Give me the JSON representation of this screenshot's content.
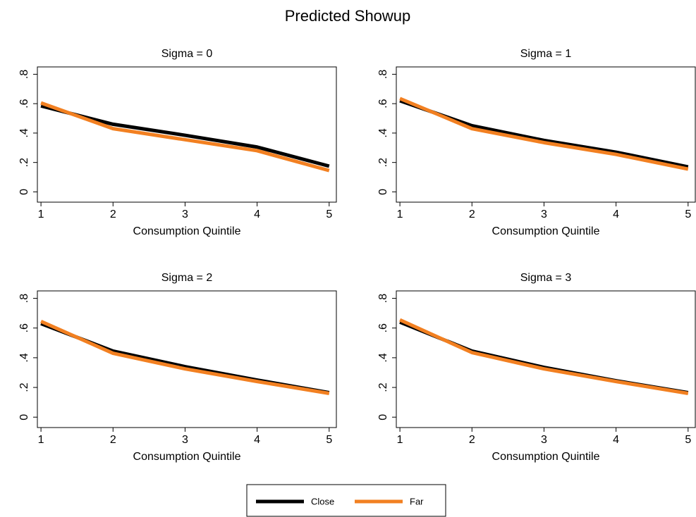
{
  "title": "Predicted Showup",
  "chart_data": [
    {
      "type": "line",
      "title": "Sigma = 0",
      "xlabel": "Consumption Quintile",
      "x": [
        1,
        2,
        3,
        4,
        5
      ],
      "series": [
        {
          "name": "Close",
          "color": "#000000",
          "values": [
            0.585,
            0.46,
            0.385,
            0.305,
            0.175
          ]
        },
        {
          "name": "Far",
          "color": "#f28021",
          "values": [
            0.605,
            0.43,
            0.355,
            0.28,
            0.145
          ]
        }
      ],
      "xlim": [
        0.95,
        5.1
      ],
      "xticks": [
        1,
        2,
        3,
        4,
        5
      ],
      "ylim": [
        -0.07,
        0.85
      ],
      "yticks": [
        0,
        {
          "value": 0.2,
          "label": ".2"
        },
        {
          "value": 0.4,
          "label": ".4"
        },
        {
          "value": 0.6,
          "label": ".6"
        },
        {
          "value": 0.8,
          "label": ".8"
        }
      ],
      "grid": false
    },
    {
      "type": "line",
      "title": "Sigma = 1",
      "xlabel": "Consumption Quintile",
      "x": [
        1,
        2,
        3,
        4,
        5
      ],
      "series": [
        {
          "name": "Close",
          "color": "#000000",
          "values": [
            0.62,
            0.45,
            0.35,
            0.27,
            0.17
          ]
        },
        {
          "name": "Far",
          "color": "#f28021",
          "values": [
            0.635,
            0.43,
            0.335,
            0.255,
            0.155
          ]
        }
      ],
      "xlim": [
        0.95,
        5.1
      ],
      "xticks": [
        1,
        2,
        3,
        4,
        5
      ],
      "ylim": [
        -0.07,
        0.85
      ],
      "yticks": [
        0,
        {
          "value": 0.2,
          "label": ".2"
        },
        {
          "value": 0.4,
          "label": ".4"
        },
        {
          "value": 0.6,
          "label": ".6"
        },
        {
          "value": 0.8,
          "label": ".8"
        }
      ],
      "grid": false
    },
    {
      "type": "line",
      "title": "Sigma = 2",
      "xlabel": "Consumption Quintile",
      "x": [
        1,
        2,
        3,
        4,
        5
      ],
      "series": [
        {
          "name": "Close",
          "color": "#000000",
          "values": [
            0.63,
            0.445,
            0.34,
            0.25,
            0.165
          ]
        },
        {
          "name": "Far",
          "color": "#f28021",
          "values": [
            0.645,
            0.43,
            0.325,
            0.24,
            0.16
          ]
        }
      ],
      "xlim": [
        0.95,
        5.1
      ],
      "xticks": [
        1,
        2,
        3,
        4,
        5
      ],
      "ylim": [
        -0.07,
        0.85
      ],
      "yticks": [
        0,
        {
          "value": 0.2,
          "label": ".2"
        },
        {
          "value": 0.4,
          "label": ".4"
        },
        {
          "value": 0.6,
          "label": ".6"
        },
        {
          "value": 0.8,
          "label": ".8"
        }
      ],
      "grid": false
    },
    {
      "type": "line",
      "title": "Sigma = 3",
      "xlabel": "Consumption Quintile",
      "x": [
        1,
        2,
        3,
        4,
        5
      ],
      "series": [
        {
          "name": "Close",
          "color": "#000000",
          "values": [
            0.64,
            0.445,
            0.335,
            0.245,
            0.165
          ]
        },
        {
          "name": "Far",
          "color": "#f28021",
          "values": [
            0.655,
            0.435,
            0.325,
            0.24,
            0.16
          ]
        }
      ],
      "xlim": [
        0.95,
        5.1
      ],
      "xticks": [
        1,
        2,
        3,
        4,
        5
      ],
      "ylim": [
        -0.07,
        0.85
      ],
      "yticks": [
        0,
        {
          "value": 0.2,
          "label": ".2"
        },
        {
          "value": 0.4,
          "label": ".4"
        },
        {
          "value": 0.6,
          "label": ".6"
        },
        {
          "value": 0.8,
          "label": ".8"
        }
      ],
      "grid": false
    }
  ]
}
